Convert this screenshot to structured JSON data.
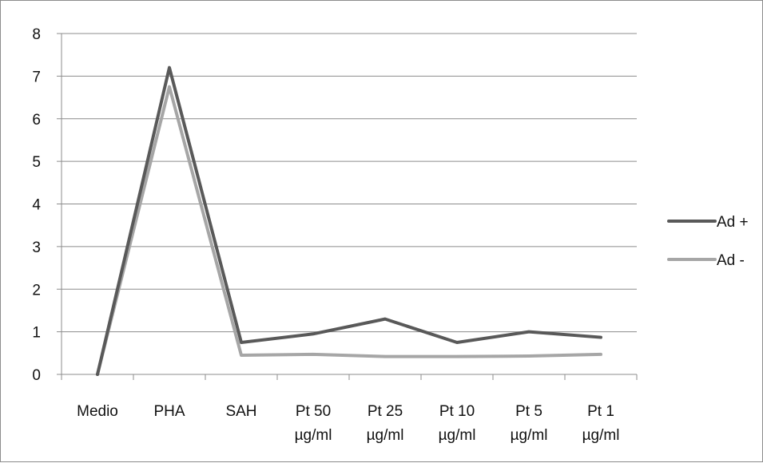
{
  "chart_data": {
    "type": "line",
    "categories": [
      [
        "Medio"
      ],
      [
        "PHA"
      ],
      [
        "SAH"
      ],
      [
        "Pt 50",
        "µg/ml"
      ],
      [
        "Pt 25",
        "µg/ml"
      ],
      [
        "Pt 10",
        "µg/ml"
      ],
      [
        "Pt   5",
        "µg/ml"
      ],
      [
        "Pt   1",
        "µg/ml"
      ]
    ],
    "series": [
      {
        "name": "Ad +",
        "color": "#595959",
        "values": [
          0,
          7.2,
          0.75,
          0.95,
          1.3,
          0.75,
          1.0,
          0.87
        ]
      },
      {
        "name": "Ad -",
        "color": "#a6a6a6",
        "values": [
          0,
          6.75,
          0.45,
          0.47,
          0.42,
          0.42,
          0.43,
          0.47
        ]
      }
    ],
    "ylim": [
      0,
      8
    ],
    "yticks": [
      "0",
      "1",
      "2",
      "3",
      "4",
      "5",
      "6",
      "7",
      "8"
    ],
    "grid": true,
    "legend": "right"
  }
}
